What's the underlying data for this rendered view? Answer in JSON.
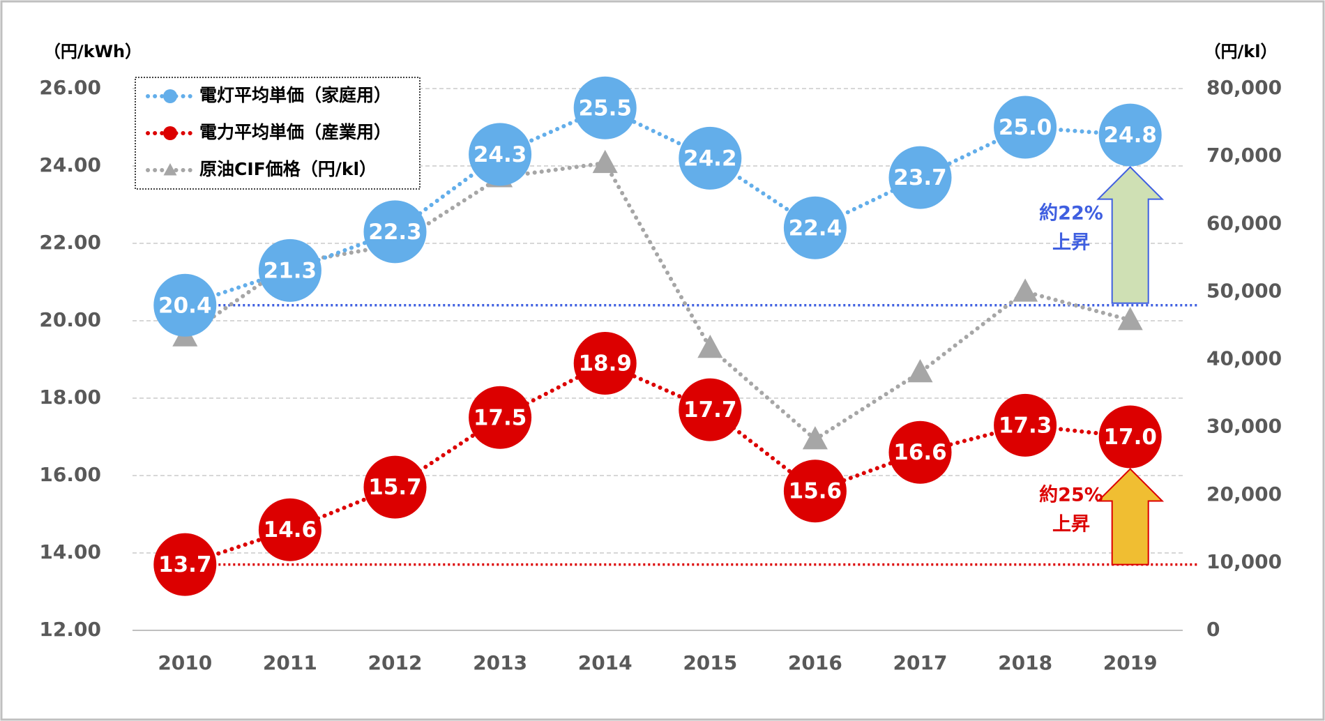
{
  "chart_data": {
    "type": "line",
    "categories": [
      "2010",
      "2011",
      "2012",
      "2013",
      "2014",
      "2015",
      "2016",
      "2017",
      "2018",
      "2019"
    ],
    "y_label": "（円/kWh）",
    "y2_label": "（円/kl）",
    "ylim": [
      12,
      26
    ],
    "yticks": [
      {
        "value": 12,
        "label": "12.00"
      },
      {
        "value": 14,
        "label": "14.00"
      },
      {
        "value": 16,
        "label": "16.00"
      },
      {
        "value": 18,
        "label": "18.00"
      },
      {
        "value": 20,
        "label": "20.00"
      },
      {
        "value": 22,
        "label": "22.00"
      },
      {
        "value": 24,
        "label": "24.00"
      },
      {
        "value": 26,
        "label": "26.00"
      }
    ],
    "y2lim": [
      0,
      80000
    ],
    "y2ticks": [
      0,
      {
        "value": 10000,
        "label": "10,000"
      },
      {
        "value": 20000,
        "label": "20,000"
      },
      {
        "value": 30000,
        "label": "30,000"
      },
      {
        "value": 40000,
        "label": "40,000"
      },
      {
        "value": 50000,
        "label": "50,000"
      },
      {
        "value": 60000,
        "label": "60,000"
      },
      {
        "value": 70000,
        "label": "70,000"
      },
      {
        "value": 80000,
        "label": "80,000"
      }
    ],
    "grid": true,
    "legend": "top-left",
    "series": [
      {
        "name": "電灯平均単価（家庭用）",
        "color": "#63aeea",
        "marker": "circle",
        "values": [
          20.4,
          21.3,
          22.3,
          24.3,
          25.5,
          24.2,
          22.4,
          23.7,
          25.0,
          24.8
        ],
        "value_labels": [
          "20.4",
          "21.3",
          "22.3",
          "24.3",
          "25.5",
          "24.2",
          "22.4",
          "23.7",
          "25.0",
          "24.8"
        ]
      },
      {
        "name": "電力平均単価（産業用）",
        "color": "#dc0000",
        "marker": "circle",
        "values": [
          13.7,
          14.6,
          15.7,
          17.5,
          18.9,
          17.7,
          15.6,
          16.6,
          17.3,
          17.0
        ],
        "value_labels": [
          "13.7",
          "14.6",
          "15.7",
          "17.5",
          "18.9",
          "17.7",
          "15.6",
          "16.6",
          "17.3",
          "17.0"
        ]
      },
      {
        "name": "原油CIF価格（円/kl）",
        "color": "#a6a6a6",
        "marker": "triangle",
        "axis": "y2",
        "values": [
          43400,
          54200,
          56900,
          66900,
          69000,
          41700,
          28200,
          38100,
          50000,
          45800
        ]
      }
    ],
    "annotations": [
      {
        "text": [
          "約22%",
          "上昇"
        ],
        "color": "#3f5fe0",
        "fill": "#cfe0b4",
        "series": 0
      },
      {
        "text": [
          "約25%",
          "上昇"
        ],
        "color": "#dc0000",
        "fill": "#f0be32",
        "series": 1
      }
    ]
  }
}
